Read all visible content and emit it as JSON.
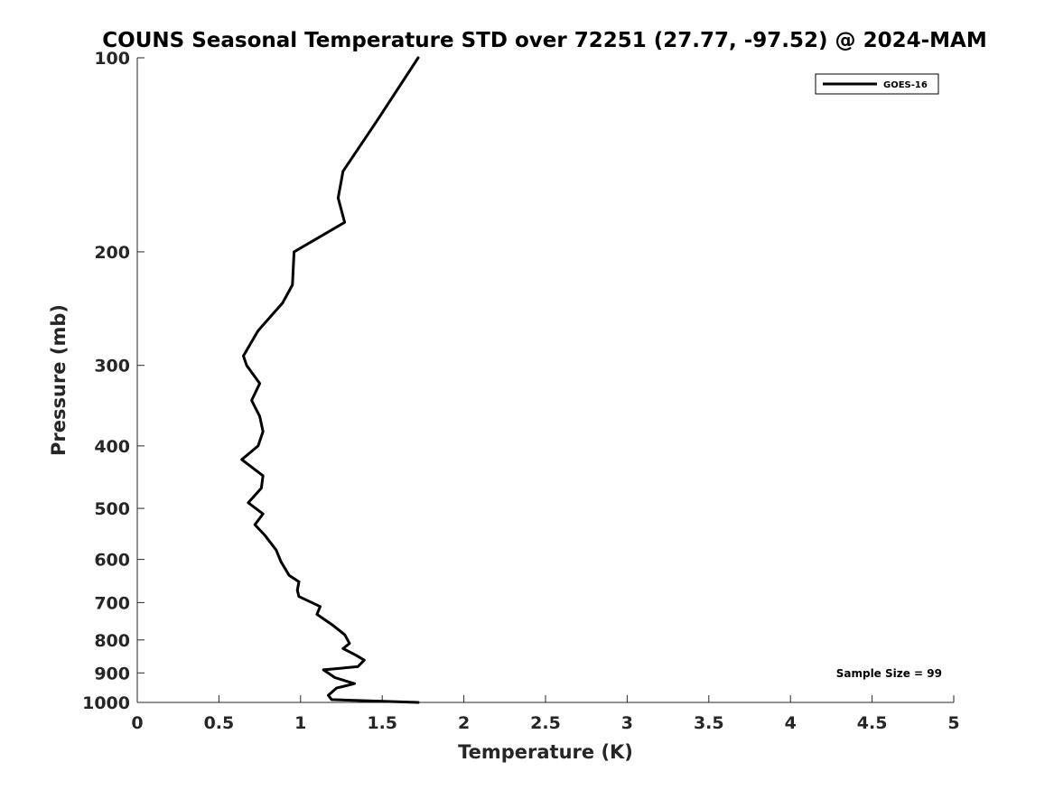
{
  "chart_data": {
    "type": "line",
    "title": "COUNS Seasonal Temperature STD over 72251 (27.77, -97.52) @ 2024-MAM",
    "xlabel": "Temperature (K)",
    "ylabel": "Pressure (mb)",
    "xlim": [
      0,
      5
    ],
    "ylim": [
      1000,
      100
    ],
    "yscale": "log",
    "x_ticks": [
      0,
      0.5,
      1,
      1.5,
      2,
      2.5,
      3,
      3.5,
      4,
      4.5,
      5
    ],
    "x_tick_labels": [
      "0",
      "0.5",
      "1",
      "1.5",
      "2",
      "2.5",
      "3",
      "3.5",
      "4",
      "4.5",
      "5"
    ],
    "y_ticks": [
      100,
      200,
      300,
      400,
      500,
      600,
      700,
      800,
      900,
      1000
    ],
    "y_tick_labels": [
      "100",
      "200",
      "300",
      "400",
      "500",
      "600",
      "700",
      "800",
      "900",
      "1000"
    ],
    "legend_position": "top-right",
    "series": [
      {
        "name": "GOES-16",
        "color": "#000000",
        "points": [
          [
            1.72,
            100
          ],
          [
            1.47,
            125
          ],
          [
            1.26,
            150
          ],
          [
            1.23,
            165
          ],
          [
            1.27,
            180
          ],
          [
            0.96,
            200
          ],
          [
            0.95,
            225
          ],
          [
            0.89,
            240
          ],
          [
            0.74,
            265
          ],
          [
            0.65,
            290
          ],
          [
            0.67,
            300
          ],
          [
            0.75,
            320
          ],
          [
            0.7,
            340
          ],
          [
            0.75,
            360
          ],
          [
            0.77,
            380
          ],
          [
            0.74,
            400
          ],
          [
            0.64,
            420
          ],
          [
            0.77,
            445
          ],
          [
            0.76,
            465
          ],
          [
            0.68,
            490
          ],
          [
            0.77,
            510
          ],
          [
            0.72,
            530
          ],
          [
            0.78,
            550
          ],
          [
            0.85,
            580
          ],
          [
            0.88,
            605
          ],
          [
            0.93,
            635
          ],
          [
            0.99,
            650
          ],
          [
            0.98,
            670
          ],
          [
            0.99,
            685
          ],
          [
            1.12,
            710
          ],
          [
            1.1,
            730
          ],
          [
            1.2,
            760
          ],
          [
            1.27,
            785
          ],
          [
            1.3,
            810
          ],
          [
            1.26,
            825
          ],
          [
            1.34,
            845
          ],
          [
            1.39,
            860
          ],
          [
            1.35,
            880
          ],
          [
            1.14,
            890
          ],
          [
            1.21,
            915
          ],
          [
            1.33,
            935
          ],
          [
            1.22,
            950
          ],
          [
            1.17,
            975
          ],
          [
            1.19,
            990
          ],
          [
            1.72,
            1000
          ]
        ]
      }
    ],
    "annotation": "Sample Size = 99"
  }
}
